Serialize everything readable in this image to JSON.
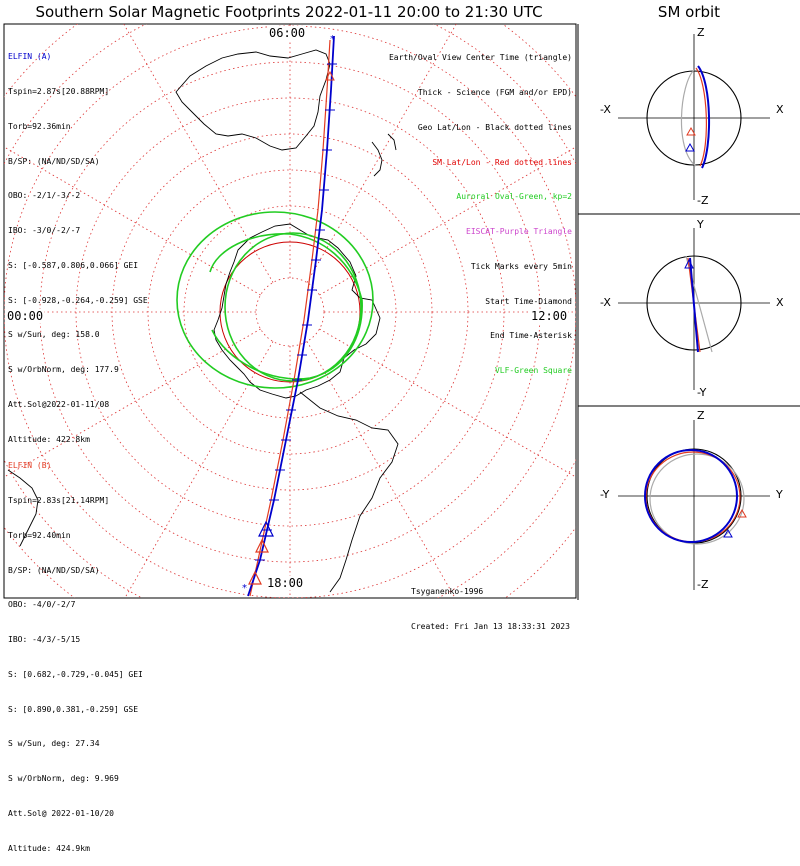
{
  "title": "Southern Solar Magnetic Footprints 2022-01-11 20:00 to 21:30 UTC",
  "sm_title": "SM orbit",
  "colors": {
    "elfin_a": "#0000cc",
    "elfin_b": "#e23b22",
    "grid": "#cc0000",
    "oval": "#22cc22",
    "coast": "#000000"
  },
  "elfin_a": {
    "name": "ELFIN (A)",
    "lines": [
      "Tspin=2.87s[20.88RPM]",
      "Torb=92.36min",
      "B/SP: (NA/ND/SD/SA)",
      "OBO: -2/1/-3/-2",
      "IBO: -3/0/-2/-7",
      "S: [-0.587,0.806,0.066] GEI",
      "S: [-0.928,-0.264,-0.259] GSE",
      "S w/Sun, deg: 158.0",
      "S w/OrbNorm, deg: 177.9",
      "Att.Sol@2022-01-11/08",
      "Altitude: 422.8km"
    ]
  },
  "elfin_b": {
    "name": "ELFIN (B)",
    "lines": [
      "Tspin=2.83s[21.14RPM]",
      "Torb=92.40min",
      "B/SP: (NA/ND/SD/SA)",
      "OBO: -4/0/-2/7",
      "IBO: -4/3/-5/15",
      "S: [0.682,-0.729,-0.045] GEI",
      "S: [0.890,0.381,-0.259] GSE",
      "S w/Sun, deg: 27.34",
      "S w/OrbNorm, deg: 9.969",
      "Att.Sol@ 2022-01-10/20",
      "Altitude: 424.9km"
    ]
  },
  "legend": [
    {
      "text": "Earth/Oval View Center Time (triangle)",
      "color": "#000000"
    },
    {
      "text": "Thick - Science (FGM and/or EPD)",
      "color": "#000000"
    },
    {
      "text": "Geo Lat/Lon - Black dotted lines",
      "color": "#000000"
    },
    {
      "text": "SM Lat/Lon - Red dotted lines",
      "color": "#e00000"
    },
    {
      "text": "Auroral Oval-Green, kp=2",
      "color": "#22cc22"
    },
    {
      "text": "EISCAT-Purple Triangle",
      "color": "#cc44cc"
    },
    {
      "text": "Tick Marks every 5min",
      "color": "#000000"
    },
    {
      "text": "Start Time-Diamond",
      "color": "#000000"
    },
    {
      "text": "End Time-Asterisk",
      "color": "#000000"
    },
    {
      "text": "VLF-Green Square",
      "color": "#22cc22"
    }
  ],
  "footer": {
    "model": "Tsyganenko-1996",
    "created": "Created: Fri Jan 13 18:33:31 2023"
  },
  "mlt_labels": {
    "top": "06:00",
    "left": "00:00",
    "right": "12:00",
    "bottom": "18:00"
  },
  "sm_panels": [
    {
      "top": "Z",
      "bottom": "-Z",
      "left": "-X",
      "right": "X"
    },
    {
      "top": "Y",
      "bottom": "-Y",
      "left": "-X",
      "right": "X"
    },
    {
      "top": "Z",
      "bottom": "-Z",
      "left": "-Y",
      "right": "Y"
    }
  ]
}
